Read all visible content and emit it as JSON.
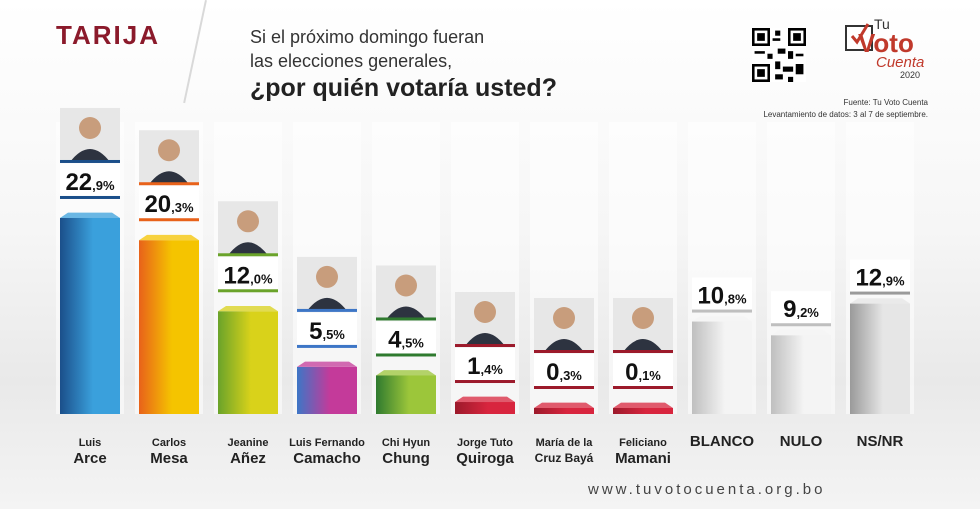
{
  "header": {
    "region": "TARIJA",
    "question_line1": "Si el próximo domingo fueran",
    "question_line2": "las elecciones generales,",
    "question_main": "¿por quién votaría usted?"
  },
  "logo": {
    "tu": "Tu",
    "voto": "Voto",
    "cuenta": "Cuenta",
    "year": "2020"
  },
  "source": {
    "line1": "Fuente: Tu Voto Cuenta",
    "line2": "Levantamiento de datos: 3 al 7 de septiembre."
  },
  "footer": {
    "website": "www.tuvotocuenta.org.bo"
  },
  "chart_data": {
    "type": "bar",
    "title": "¿por quién votaría usted?",
    "categories": [
      [
        "Luis",
        "Arce"
      ],
      [
        "Carlos",
        "Mesa"
      ],
      [
        "Jeanine",
        "Añez"
      ],
      [
        "Luis Fernando",
        "Camacho"
      ],
      [
        "Chi Hyun",
        "Chung"
      ],
      [
        "Jorge Tuto",
        "Quiroga"
      ],
      [
        "María de la",
        "Cruz Bayá"
      ],
      [
        "Feliciano",
        "Mamani"
      ],
      [
        "BLANCO"
      ],
      [
        "NULO"
      ],
      [
        "NS/NR"
      ]
    ],
    "values": [
      22.9,
      20.3,
      12.0,
      5.5,
      4.5,
      1.4,
      0.3,
      0.1,
      10.8,
      9.2,
      12.9
    ],
    "value_labels": [
      [
        "22",
        ",9%"
      ],
      [
        "20",
        ",3%"
      ],
      [
        "12",
        ",0%"
      ],
      [
        "5",
        ",5%"
      ],
      [
        "4",
        ",5%"
      ],
      [
        "1",
        ",4%"
      ],
      [
        "0",
        ",3%"
      ],
      [
        "0",
        ",1%"
      ],
      [
        "10",
        ",8%"
      ],
      [
        "9",
        ",2%"
      ],
      [
        "12",
        ",9%"
      ]
    ],
    "colors": [
      [
        "#1b4f8a",
        "#3aa0dc"
      ],
      [
        "#e8621a",
        "#f5c400"
      ],
      [
        "#6aa32a",
        "#d9d21a"
      ],
      [
        "#3d76c6",
        "#c43a9a"
      ],
      [
        "#2f7a2f",
        "#9cc63a"
      ],
      [
        "#9c1a2b",
        "#d8253e"
      ],
      [
        "#9c1a2b",
        "#d8253e"
      ],
      [
        "#9c1a2b",
        "#d8253e"
      ],
      [
        "#bfbfbf",
        "#f4f4f4"
      ],
      [
        "#bfbfbf",
        "#f4f4f4"
      ],
      [
        "#9a9a9a",
        "#e6e6e6"
      ]
    ],
    "ylim": [
      0,
      25
    ]
  }
}
